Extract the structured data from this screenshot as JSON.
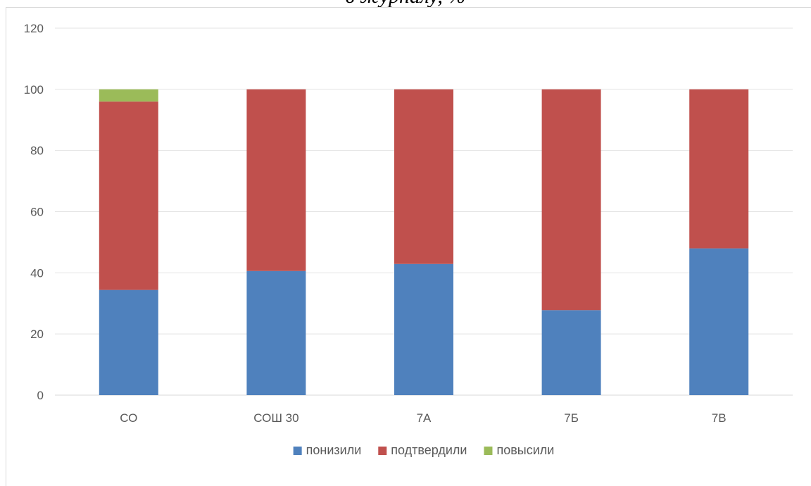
{
  "chart_data": {
    "type": "bar",
    "stacked": true,
    "title": "в журналу, %",
    "categories": [
      "СО",
      "СОШ 30",
      "7А",
      "7Б",
      "7В"
    ],
    "series": [
      {
        "name": "понизили",
        "color": "#4f81bd",
        "values": [
          34.4,
          40.6,
          42.9,
          27.8,
          48.0
        ]
      },
      {
        "name": "подтвердили",
        "color": "#c0504d",
        "values": [
          61.6,
          59.4,
          57.1,
          72.2,
          52.0
        ]
      },
      {
        "name": "повысили",
        "color": "#9bbb59",
        "values": [
          4.0,
          0,
          0,
          0,
          0
        ]
      }
    ],
    "ylim": [
      0,
      120
    ],
    "yticks": [
      0,
      20,
      40,
      60,
      80,
      100,
      120
    ],
    "grid": true,
    "legend": "bottom"
  }
}
